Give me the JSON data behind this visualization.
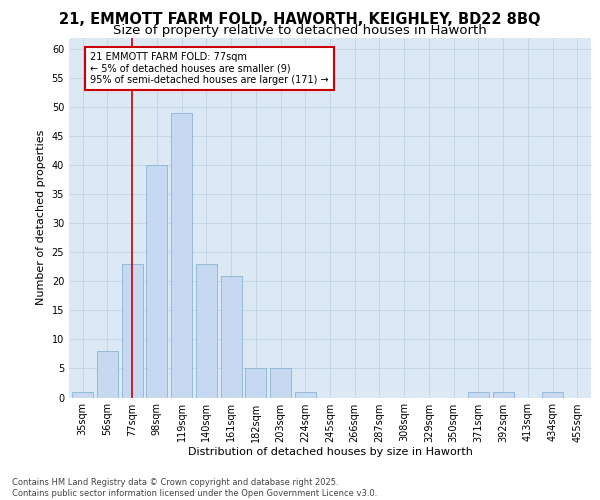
{
  "title1": "21, EMMOTT FARM FOLD, HAWORTH, KEIGHLEY, BD22 8BQ",
  "title2": "Size of property relative to detached houses in Haworth",
  "xlabel": "Distribution of detached houses by size in Haworth",
  "ylabel": "Number of detached properties",
  "categories": [
    "35sqm",
    "56sqm",
    "77sqm",
    "98sqm",
    "119sqm",
    "140sqm",
    "161sqm",
    "182sqm",
    "203sqm",
    "224sqm",
    "245sqm",
    "266sqm",
    "287sqm",
    "308sqm",
    "329sqm",
    "350sqm",
    "371sqm",
    "392sqm",
    "413sqm",
    "434sqm",
    "455sqm"
  ],
  "values": [
    1,
    8,
    23,
    40,
    49,
    23,
    21,
    5,
    5,
    1,
    0,
    0,
    0,
    0,
    0,
    0,
    1,
    1,
    0,
    1,
    0
  ],
  "bar_color": "#c6d9f0",
  "bar_edge_color": "#8ab4d4",
  "red_line_index": 2,
  "annotation_text": "21 EMMOTT FARM FOLD: 77sqm\n← 5% of detached houses are smaller (9)\n95% of semi-detached houses are larger (171) →",
  "annotation_box_facecolor": "#ffffff",
  "annotation_box_edgecolor": "#cc0000",
  "red_line_color": "#cc0000",
  "grid_color": "#c0d4e8",
  "plot_bg_color": "#dce9f5",
  "fig_bg_color": "#ffffff",
  "ylim": [
    0,
    62
  ],
  "yticks": [
    0,
    5,
    10,
    15,
    20,
    25,
    30,
    35,
    40,
    45,
    50,
    55,
    60
  ],
  "footer": "Contains HM Land Registry data © Crown copyright and database right 2025.\nContains public sector information licensed under the Open Government Licence v3.0.",
  "title_fontsize": 10.5,
  "subtitle_fontsize": 9.5,
  "ylabel_fontsize": 8,
  "xlabel_fontsize": 8,
  "tick_fontsize": 7,
  "annotation_fontsize": 7,
  "footer_fontsize": 6
}
